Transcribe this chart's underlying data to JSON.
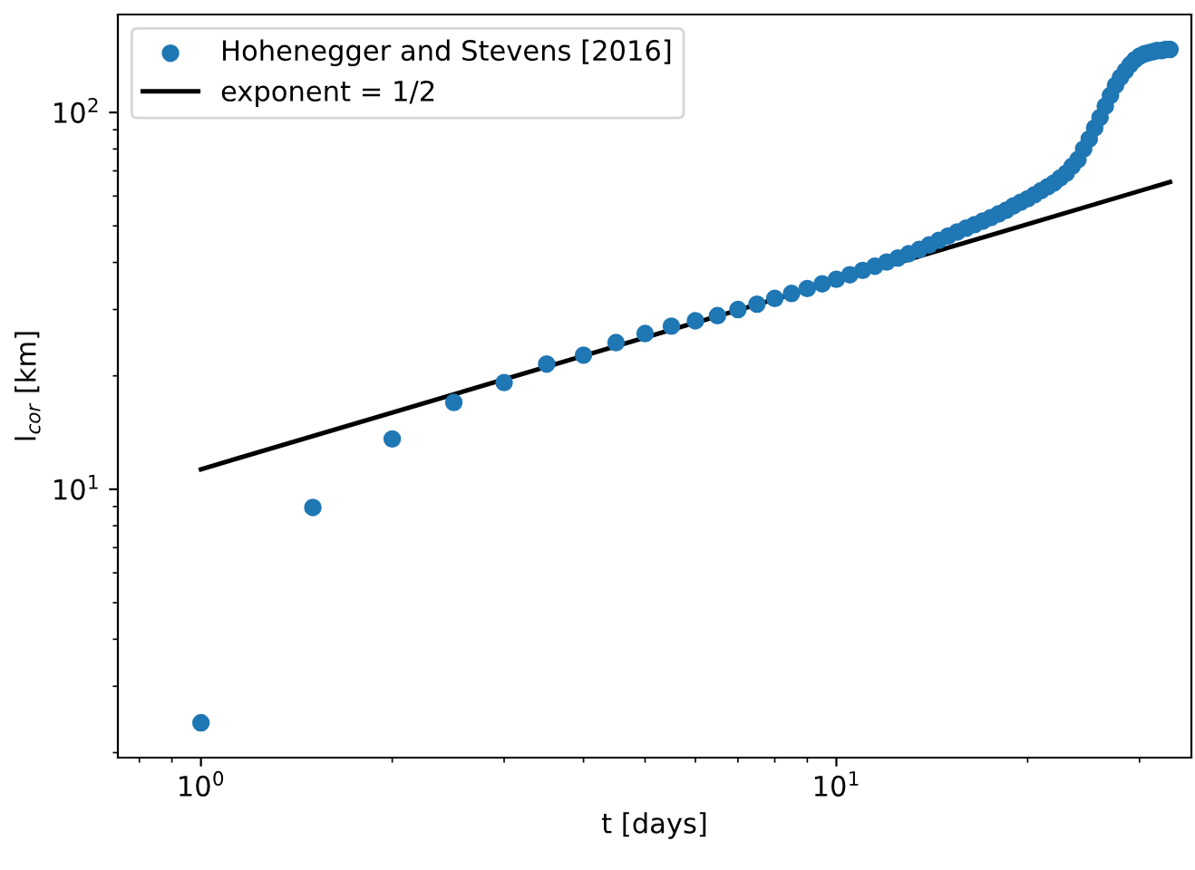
{
  "chart_data": {
    "type": "scatter",
    "xlabel": "t [days]",
    "ylabel": "l$_{cor}$ [km]",
    "log": "xy",
    "grid": false,
    "legend": "top left",
    "xlim": [
      0.74,
      36.2
    ],
    "ylim": [
      1.94,
      182
    ],
    "xticks": [
      {
        "value": 1,
        "label": "10$^{0}$"
      },
      {
        "value": 10,
        "label": "10$^{1}$"
      }
    ],
    "yticks": [
      {
        "value": 10,
        "label": "10$^{1}$"
      },
      {
        "value": 100,
        "label": "10$^{2}$"
      }
    ],
    "series": [
      {
        "name": "Hohenegger and Stevens [2016]",
        "marker": "circle",
        "color": "#1f77b4",
        "x": [
          1,
          1.5,
          2,
          2.5,
          3,
          3.5,
          4,
          4.5,
          5,
          5.5,
          6,
          6.5,
          7,
          7.5,
          8,
          8.5,
          9,
          9.5,
          10,
          10.5,
          11,
          11.5,
          12,
          12.5,
          13,
          13.5,
          14,
          14.5,
          15,
          15.5,
          16,
          16.5,
          17,
          17.5,
          18,
          18.5,
          19,
          19.5,
          20,
          20.5,
          21,
          21.5,
          22,
          22.5,
          23,
          23.5,
          24,
          24.5,
          25,
          25.5,
          26,
          26.5,
          27,
          27.5,
          28,
          28.5,
          29,
          29.5,
          30,
          30.5,
          31,
          31.5,
          32,
          32.5,
          33,
          33.5
        ],
        "values": [
          2.4,
          8.95,
          13.6,
          17.0,
          19.2,
          21.5,
          22.7,
          24.5,
          25.9,
          27.1,
          28.0,
          28.9,
          30.0,
          31.0,
          32.1,
          33.1,
          34.1,
          35.1,
          36.1,
          37.1,
          38.1,
          39.1,
          40.1,
          41.1,
          42.2,
          43.3,
          44.5,
          45.8,
          47.0,
          48.2,
          49.3,
          50.4,
          51.5,
          52.6,
          53.8,
          55.0,
          56.5,
          57.8,
          59.0,
          60.5,
          62.0,
          63.5,
          65.0,
          67.0,
          69.0,
          72.0,
          75.0,
          80.0,
          85.0,
          91.0,
          97.0,
          104,
          111,
          118,
          124,
          129,
          134,
          138,
          141,
          143,
          144,
          145,
          146,
          146,
          147,
          147
        ]
      },
      {
        "name": "exponent = 1/2",
        "type": "line",
        "marker": "none",
        "line_style": "solid",
        "color": "#000000",
        "x": [
          1,
          33.5
        ],
        "values": [
          11.3,
          65.4
        ]
      }
    ]
  }
}
